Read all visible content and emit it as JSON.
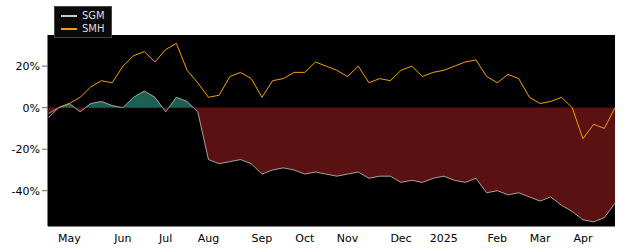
{
  "chart_data": {
    "type": "line",
    "legend": "upper left",
    "grid": false,
    "categories": [
      null,
      null,
      "May",
      null,
      null,
      null,
      null,
      "Jun",
      null,
      null,
      null,
      "Jul",
      null,
      null,
      null,
      "Aug",
      null,
      null,
      null,
      null,
      "Sep",
      null,
      null,
      null,
      "Oct",
      null,
      null,
      null,
      "Nov",
      null,
      null,
      null,
      null,
      "Dec",
      null,
      null,
      null,
      "2025",
      null,
      null,
      null,
      null,
      "Feb",
      null,
      null,
      null,
      "Mar",
      null,
      null,
      null,
      "Apr",
      null,
      null,
      null
    ],
    "series": [
      {
        "name": "SGM",
        "type": "area",
        "color": "#c8c8c8",
        "values": [
          -3,
          0,
          2,
          -2,
          2,
          3,
          1,
          0,
          5,
          8,
          5,
          -2,
          5,
          3,
          -2,
          -25,
          -27,
          -26,
          -25,
          -27,
          -32,
          -30,
          -29,
          -30,
          -32,
          -31,
          -32,
          -33,
          -32,
          -31,
          -34,
          -33,
          -33,
          -36,
          -35,
          -36,
          -34,
          -33,
          -35,
          -36,
          -34,
          -41,
          -40,
          -42,
          -41,
          -43,
          -45,
          -43,
          -47,
          -50,
          -54,
          -55,
          -53,
          -46
        ]
      },
      {
        "name": "SMH",
        "type": "line",
        "color": "#f5a000",
        "values": [
          -5,
          0,
          2,
          5,
          10,
          13,
          12,
          20,
          25,
          27,
          22,
          28,
          31,
          18,
          12,
          5,
          6,
          15,
          17,
          14,
          5,
          13,
          14,
          17,
          17,
          22,
          20,
          18,
          15,
          20,
          12,
          14,
          13,
          18,
          20,
          15,
          17,
          18,
          20,
          22,
          23,
          15,
          12,
          16,
          14,
          5,
          2,
          3,
          5,
          0,
          -15,
          -8,
          -10,
          0
        ]
      }
    ],
    "ylim": [
      -57,
      35
    ],
    "yticks": [
      {
        "value": -40,
        "label": "-40%"
      },
      {
        "value": -20,
        "label": "-20%"
      },
      {
        "value": 0,
        "label": "0%"
      },
      {
        "value": 20,
        "label": "20%"
      }
    ]
  }
}
